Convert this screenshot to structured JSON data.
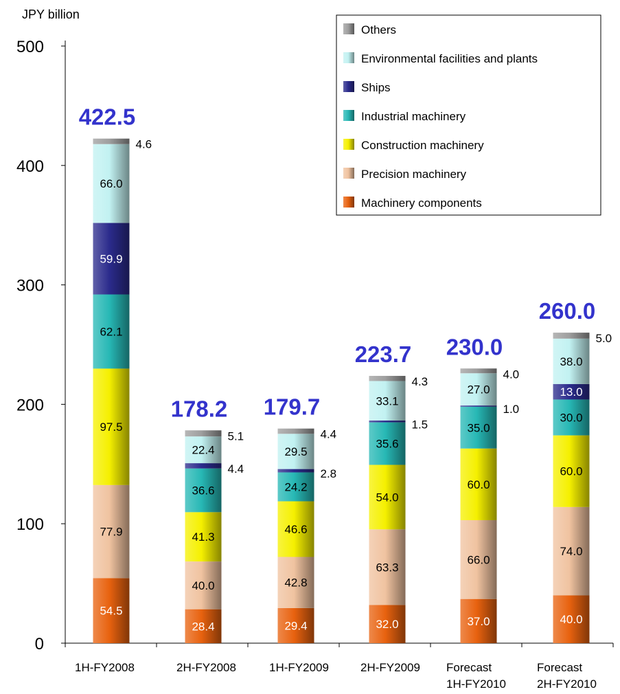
{
  "chart_data": {
    "type": "bar",
    "stacked": true,
    "unit_label": "JPY billion",
    "ylim": [
      0,
      500
    ],
    "yticks": [
      0,
      100,
      200,
      300,
      400,
      500
    ],
    "categories": [
      [
        "1H-FY2008"
      ],
      [
        "2H-FY2008"
      ],
      [
        "1H-FY2009"
      ],
      [
        "2H-FY2009"
      ],
      [
        "Forecast",
        "1H-FY2010"
      ],
      [
        "Forecast",
        "2H-FY2010"
      ]
    ],
    "totals": [
      "422.5",
      "178.2",
      "179.7",
      "223.7",
      "230.0",
      "260.0"
    ],
    "series": [
      {
        "name": "Machinery components",
        "color": "#e8620f",
        "text_color": "#ffffff",
        "values": [
          54.5,
          28.4,
          29.4,
          32.0,
          37.0,
          40.0
        ],
        "labels": [
          "54.5",
          "28.4",
          "29.4",
          "32.0",
          "37.0",
          "40.0"
        ]
      },
      {
        "name": "Precision machinery",
        "color": "#f0c3a0",
        "text_color": "#000000",
        "values": [
          77.9,
          40.0,
          42.8,
          63.3,
          66.0,
          74.0
        ],
        "labels": [
          "77.9",
          "40.0",
          "42.8",
          "63.3",
          "66.0",
          "74.0"
        ]
      },
      {
        "name": "Construction machinery",
        "color": "#f5f000",
        "text_color": "#000000",
        "values": [
          97.5,
          41.3,
          46.6,
          54.0,
          60.0,
          60.0
        ],
        "labels": [
          "97.5",
          "41.3",
          "46.6",
          "54.0",
          "60.0",
          "60.0"
        ]
      },
      {
        "name": "Industrial machinery",
        "color": "#27b8b5",
        "text_color": "#000000",
        "values": [
          62.1,
          36.6,
          24.2,
          35.6,
          35.0,
          30.0
        ],
        "labels": [
          "62.1",
          "36.6",
          "24.2",
          "35.6",
          "35.0",
          "30.0"
        ]
      },
      {
        "name": "Ships",
        "color": "#2b2b8c",
        "text_color": "#ffffff",
        "values": [
          59.9,
          4.4,
          2.8,
          1.5,
          1.0,
          13.0
        ],
        "labels": [
          "59.9",
          "4.4",
          "2.8",
          "1.5",
          "1.0",
          "13.0"
        ],
        "outside": [
          false,
          true,
          true,
          true,
          true,
          false
        ]
      },
      {
        "name": "Environmental facilities and plants",
        "color": "#c2f2f2",
        "text_color": "#000000",
        "values": [
          66.0,
          22.4,
          29.5,
          33.1,
          27.0,
          38.0
        ],
        "labels": [
          "66.0",
          "22.4",
          "29.5",
          "33.1",
          "27.0",
          "38.0"
        ]
      },
      {
        "name": "Others",
        "color": "#9e9e9e",
        "text_color": "#000000",
        "values": [
          4.6,
          5.1,
          4.4,
          4.3,
          4.0,
          5.0
        ],
        "labels": [
          "4.6",
          "5.1",
          "4.4",
          "4.3",
          "4.0",
          "5.0"
        ],
        "outside": [
          true,
          true,
          true,
          true,
          true,
          true
        ]
      }
    ],
    "legend_placement": "top-right",
    "legend_order": [
      "Others",
      "Environmental facilities and plants",
      "Ships",
      "Industrial machinery",
      "Construction machinery",
      "Precision machinery",
      "Machinery components"
    ],
    "grid": false
  }
}
